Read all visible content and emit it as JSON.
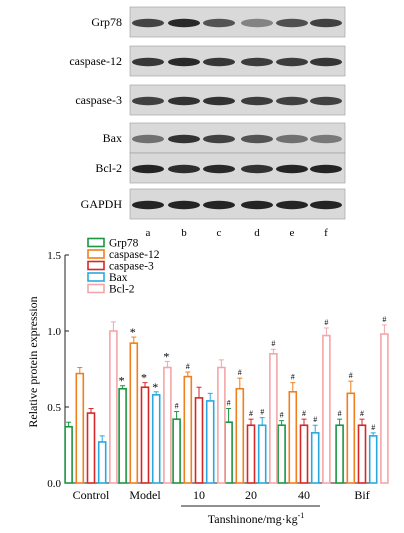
{
  "blot": {
    "proteins": [
      "Grp78",
      "caspase-12",
      "caspase-3",
      "Bax",
      "Bcl-2",
      "GAPDH"
    ],
    "lanes": [
      "a",
      "b",
      "c",
      "d",
      "e",
      "f"
    ]
  },
  "chart_data": {
    "type": "bar",
    "ylabel": "Relative protein expression",
    "xlabel": "Tanshinone/mg·kg",
    "xlabel_sup": "-1",
    "ylim": [
      0.0,
      1.5
    ],
    "yticks": [
      "0.0",
      "0.5",
      "1.0",
      "1.5"
    ],
    "categories": [
      "Control",
      "Model",
      "10",
      "20",
      "40",
      "Bif"
    ],
    "legend_position": "top-left",
    "series": [
      {
        "name": "Grp78",
        "color": "#1a9641",
        "values": [
          0.37,
          0.62,
          0.42,
          0.4,
          0.38,
          0.38
        ],
        "errors": [
          0.03,
          0.02,
          0.05,
          0.09,
          0.03,
          0.04
        ],
        "marks": [
          "",
          "*",
          "#",
          "#",
          "#",
          "#"
        ]
      },
      {
        "name": "caspase-12",
        "color": "#f07f1d",
        "values": [
          0.72,
          0.92,
          0.7,
          0.62,
          0.6,
          0.59
        ],
        "errors": [
          0.04,
          0.04,
          0.03,
          0.07,
          0.06,
          0.08
        ],
        "marks": [
          "",
          "*",
          "#",
          "#",
          "#",
          "#"
        ]
      },
      {
        "name": "caspase-3",
        "color": "#d62728",
        "values": [
          0.46,
          0.63,
          0.56,
          0.38,
          0.38,
          0.38
        ],
        "errors": [
          0.03,
          0.03,
          0.07,
          0.04,
          0.04,
          0.04
        ],
        "marks": [
          "",
          "*",
          "",
          "#",
          "#",
          "#"
        ]
      },
      {
        "name": "Bax",
        "color": "#29a8e0",
        "values": [
          0.27,
          0.58,
          0.54,
          0.38,
          0.33,
          0.31
        ],
        "errors": [
          0.04,
          0.02,
          0.05,
          0.05,
          0.05,
          0.02
        ],
        "marks": [
          "",
          "*",
          "",
          "#",
          "#",
          "#"
        ]
      },
      {
        "name": "Bcl-2",
        "color": "#f4a6a8",
        "values": [
          1.0,
          0.76,
          0.76,
          0.85,
          0.97,
          0.98
        ],
        "errors": [
          0.06,
          0.04,
          0.05,
          0.03,
          0.05,
          0.06
        ],
        "marks": [
          "",
          "*",
          "",
          "#",
          "#",
          "#"
        ]
      }
    ]
  }
}
